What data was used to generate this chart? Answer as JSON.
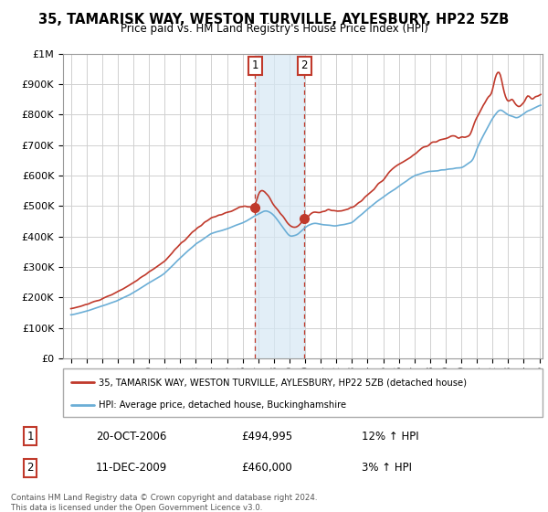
{
  "title": "35, TAMARISK WAY, WESTON TURVILLE, AYLESBURY, HP22 5ZB",
  "subtitle": "Price paid vs. HM Land Registry's House Price Index (HPI)",
  "background_color": "#ffffff",
  "grid_color": "#d0d0d0",
  "ylim": [
    0,
    1000000
  ],
  "yticks": [
    0,
    100000,
    200000,
    300000,
    400000,
    500000,
    600000,
    700000,
    800000,
    900000
  ],
  "ytick_labels": [
    "£0",
    "£100K",
    "£200K",
    "£300K",
    "£400K",
    "£500K",
    "£600K",
    "£700K",
    "£800K",
    "£900K"
  ],
  "y1m_label": "£1M",
  "hpi_color": "#6baed6",
  "price_color": "#c0392b",
  "marker_color": "#c0392b",
  "shade_color": "#d6e8f5",
  "transaction1_x": 2006.8,
  "transaction1_y": 494995,
  "transaction2_x": 2009.95,
  "transaction2_y": 460000,
  "transaction1_label": "1",
  "transaction2_label": "2",
  "legend_entry1": "35, TAMARISK WAY, WESTON TURVILLE, AYLESBURY, HP22 5ZB (detached house)",
  "legend_entry2": "HPI: Average price, detached house, Buckinghamshire",
  "annotation1_date": "20-OCT-2006",
  "annotation1_price": "£494,995",
  "annotation1_hpi": "12% ↑ HPI",
  "annotation2_date": "11-DEC-2009",
  "annotation2_price": "£460,000",
  "annotation2_hpi": "3% ↑ HPI",
  "footnote": "Contains HM Land Registry data © Crown copyright and database right 2024.\nThis data is licensed under the Open Government Licence v3.0.",
  "xlim_left": 1994.5,
  "xlim_right": 2025.2
}
